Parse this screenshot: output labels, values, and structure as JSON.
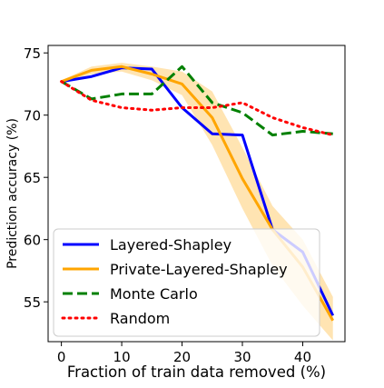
{
  "chart_data": {
    "type": "line",
    "title": "",
    "xlabel": "Fraction of train data removed (%)",
    "ylabel": "Prediction accuracy (%)",
    "xlim": [
      -2.2,
      47
    ],
    "ylim": [
      51.8,
      75.6
    ],
    "xticks": [
      0,
      10,
      20,
      30,
      40
    ],
    "yticks": [
      55,
      60,
      65,
      70,
      75
    ],
    "grid": false,
    "legend": "lower-left",
    "series": [
      {
        "name": "Layered-Shapley",
        "color": "#0000ff",
        "style": "solid",
        "x": [
          0,
          5,
          10,
          15,
          20,
          25,
          30,
          35,
          40,
          45
        ],
        "y": [
          72.7,
          73.1,
          73.8,
          73.7,
          70.6,
          68.5,
          68.4,
          60.8,
          59.0,
          53.9
        ]
      },
      {
        "name": "Private-Layered-Shapley",
        "color": "#ffa500",
        "style": "solid",
        "x": [
          0,
          5,
          10,
          15,
          20,
          25,
          30,
          35,
          40,
          45
        ],
        "y": [
          72.7,
          73.6,
          73.9,
          73.3,
          72.5,
          69.8,
          64.9,
          60.8,
          57.8,
          53.5
        ],
        "band_lower": [
          72.6,
          73.3,
          73.5,
          72.8,
          71.6,
          67.6,
          62.5,
          57.9,
          54.7,
          51.9
        ],
        "band_upper": [
          72.8,
          73.9,
          74.2,
          73.9,
          73.5,
          71.9,
          67.4,
          62.7,
          60.0,
          55.4
        ]
      },
      {
        "name": "Monte Carlo",
        "color": "#008000",
        "style": "dashed",
        "x": [
          0,
          5,
          10,
          15,
          20,
          25,
          30,
          35,
          40,
          45
        ],
        "y": [
          72.7,
          71.3,
          71.7,
          71.7,
          73.9,
          71.0,
          70.2,
          68.4,
          68.7,
          68.5
        ]
      },
      {
        "name": "Random",
        "color": "#ff0000",
        "style": "dotted",
        "x": [
          0,
          5,
          10,
          15,
          20,
          25,
          30,
          35,
          40,
          45
        ],
        "y": [
          72.7,
          71.2,
          70.6,
          70.4,
          70.6,
          70.6,
          71.0,
          69.8,
          69.0,
          68.4
        ]
      }
    ]
  }
}
